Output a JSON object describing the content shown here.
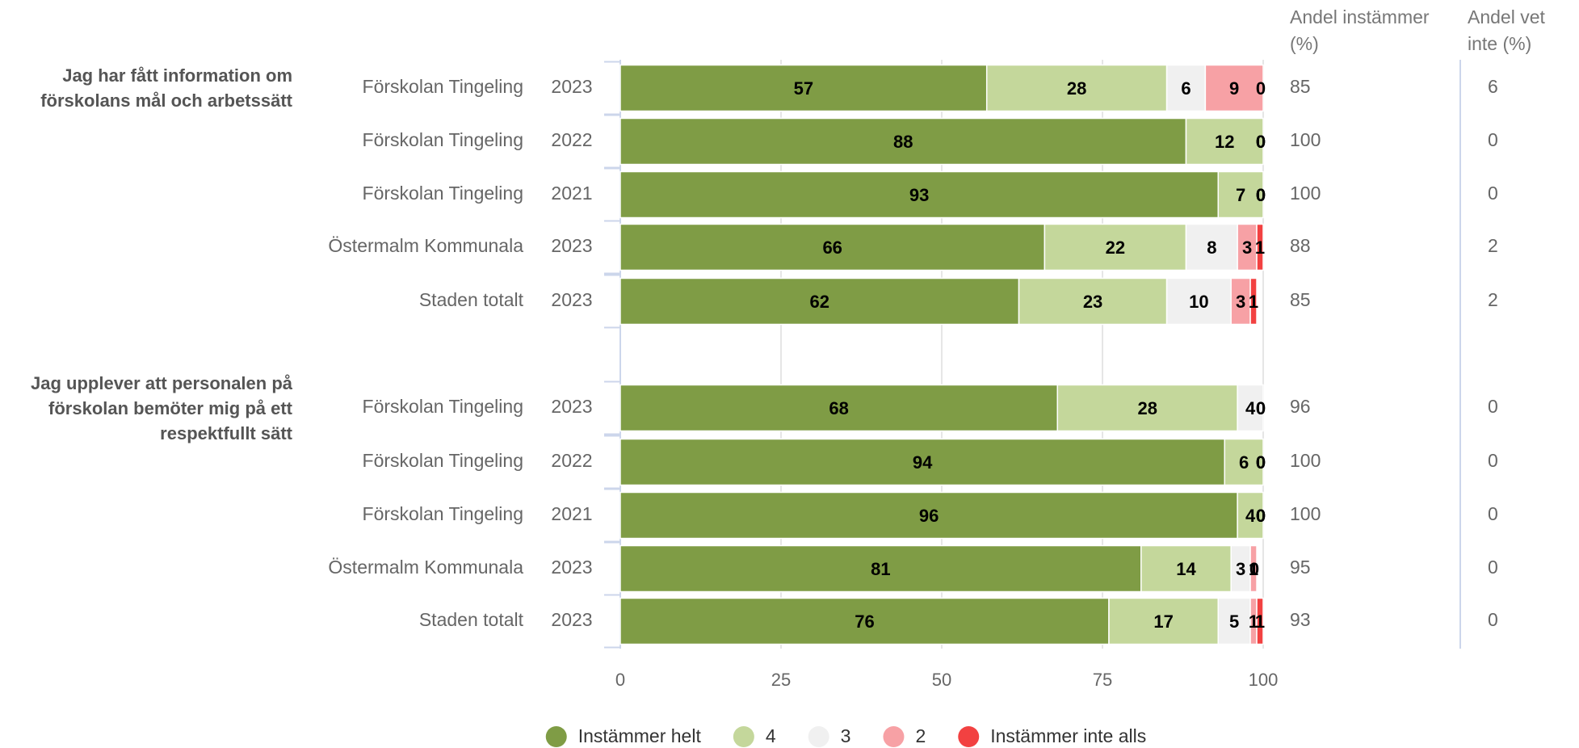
{
  "chart_data": {
    "type": "bar",
    "orientation": "horizontal",
    "stacked": true,
    "groups": [
      {
        "title": "Jag har fått information om förskolans mål och arbetssätt",
        "categories": [
          "Förskolan Tingeling",
          "Förskolan Tingeling",
          "Förskolan Tingeling",
          "Östermalm Kommunala",
          "Staden totalt"
        ],
        "years": [
          "2023",
          "2022",
          "2021",
          "2023",
          "2023"
        ],
        "andel_instammer": [
          85,
          100,
          100,
          88,
          85
        ],
        "andel_vet_inte": [
          6,
          0,
          0,
          2,
          2
        ]
      },
      {
        "title": "Jag upplever att personalen på förskolan bemöter mig på ett respektfullt sätt",
        "categories": [
          "Förskolan Tingeling",
          "Förskolan Tingeling",
          "Förskolan Tingeling",
          "Östermalm Kommunala",
          "Staden totalt"
        ],
        "years": [
          "2023",
          "2022",
          "2021",
          "2023",
          "2023"
        ],
        "andel_instammer": [
          96,
          100,
          100,
          95,
          93
        ],
        "andel_vet_inte": [
          0,
          0,
          0,
          0,
          0
        ]
      }
    ],
    "column_headers": [
      "Andel instämmer (%)",
      "Andel vet inte (%)"
    ],
    "series": [
      {
        "name": "Instämmer helt",
        "color": "#7f9c45",
        "values": [
          57,
          88,
          93,
          66,
          62,
          68,
          94,
          96,
          81,
          76
        ]
      },
      {
        "name": "4",
        "color": "#c4d79b",
        "values": [
          28,
          12,
          7,
          22,
          23,
          28,
          6,
          4,
          14,
          17
        ]
      },
      {
        "name": "3",
        "color": "#f0f0f0",
        "values": [
          6,
          0,
          0,
          8,
          10,
          4,
          0,
          0,
          3,
          5
        ]
      },
      {
        "name": "2",
        "color": "#f7a1a5",
        "values": [
          9,
          0,
          0,
          3,
          3,
          0,
          0,
          0,
          1,
          1
        ]
      },
      {
        "name": "Instämmer inte alls",
        "color": "#f24141",
        "values": [
          0,
          0,
          0,
          1,
          1,
          0,
          0,
          0,
          0,
          1
        ]
      }
    ],
    "xlim": [
      0,
      100
    ],
    "xticks": [
      0,
      25,
      50,
      75,
      100
    ],
    "grid": true,
    "legend": "bottom"
  }
}
